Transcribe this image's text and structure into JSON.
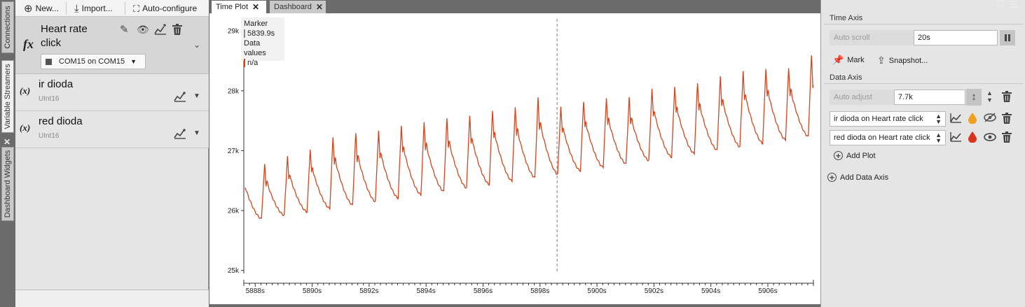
{
  "vertical_tabs": [
    "Connections",
    "Variable Streamers",
    "Dashboard Widgets"
  ],
  "toolbar": {
    "new_label": "New...",
    "import_label": "Import...",
    "autoconfigure_label": "Auto-configure"
  },
  "streamer": {
    "title_line1": "Heart rate",
    "title_line2": "click",
    "port": "COM15 on COM15"
  },
  "variables": [
    {
      "name": "ir dioda",
      "type": "UInt16"
    },
    {
      "name": "red dioda",
      "type": "UInt16"
    }
  ],
  "tabs": [
    {
      "label": "Time Plot",
      "active": true
    },
    {
      "label": "Dashboard",
      "active": false
    }
  ],
  "marker_box": {
    "marker_label": "Marker",
    "marker_value": "5839.9s",
    "data_label": "Data values",
    "data_value": "n/a"
  },
  "time_axis": {
    "section": "Time Axis",
    "auto_scroll_label": "Auto scroll",
    "auto_scroll_value": "20s",
    "mark_label": "Mark",
    "snapshot_label": "Snapshot..."
  },
  "data_axis": {
    "section": "Data Axis",
    "auto_adjust_label": "Auto adjust",
    "auto_adjust_value": "7.7k",
    "plots": [
      {
        "label": "ir dioda on Heart rate click",
        "drop_color": "#f0a020",
        "visible": false
      },
      {
        "label": "red dioda on Heart rate click",
        "drop_color": "#d8341c",
        "visible": true
      }
    ],
    "add_plot_label": "Add Plot",
    "add_data_axis_label": "Add Data Axis"
  },
  "chart_data": {
    "type": "line",
    "xlabel": "",
    "ylabel": "",
    "xlim": [
      5887.6,
      5907.6
    ],
    "ylim": [
      24950,
      29200
    ],
    "x_ticks": [
      "5888s",
      "5890s",
      "5892s",
      "5894s",
      "5896s",
      "5898s",
      "5900s",
      "5902s",
      "5904s",
      "5906s"
    ],
    "x_tick_values": [
      5888,
      5890,
      5892,
      5894,
      5896,
      5898,
      5900,
      5902,
      5904,
      5906
    ],
    "y_ticks": [
      "25k",
      "26k",
      "27k",
      "28k",
      "29k"
    ],
    "y_tick_values": [
      25000,
      26000,
      27000,
      28000,
      29000
    ],
    "marker_x": 5898.6,
    "series": [
      {
        "color": "#d8441c",
        "beat_period_s": 0.8,
        "first_beat_x": 5888.22,
        "baseline_start": 25820,
        "baseline_end": 27250,
        "peaks": [
          26780,
          26920,
          27050,
          27250,
          27300,
          27350,
          27450,
          27500,
          27550,
          27600,
          27700,
          27750,
          27900,
          27750,
          27850,
          27900,
          27900,
          28050,
          28100,
          28150,
          28250,
          28350,
          28400,
          28400,
          28600
        ]
      }
    ]
  }
}
